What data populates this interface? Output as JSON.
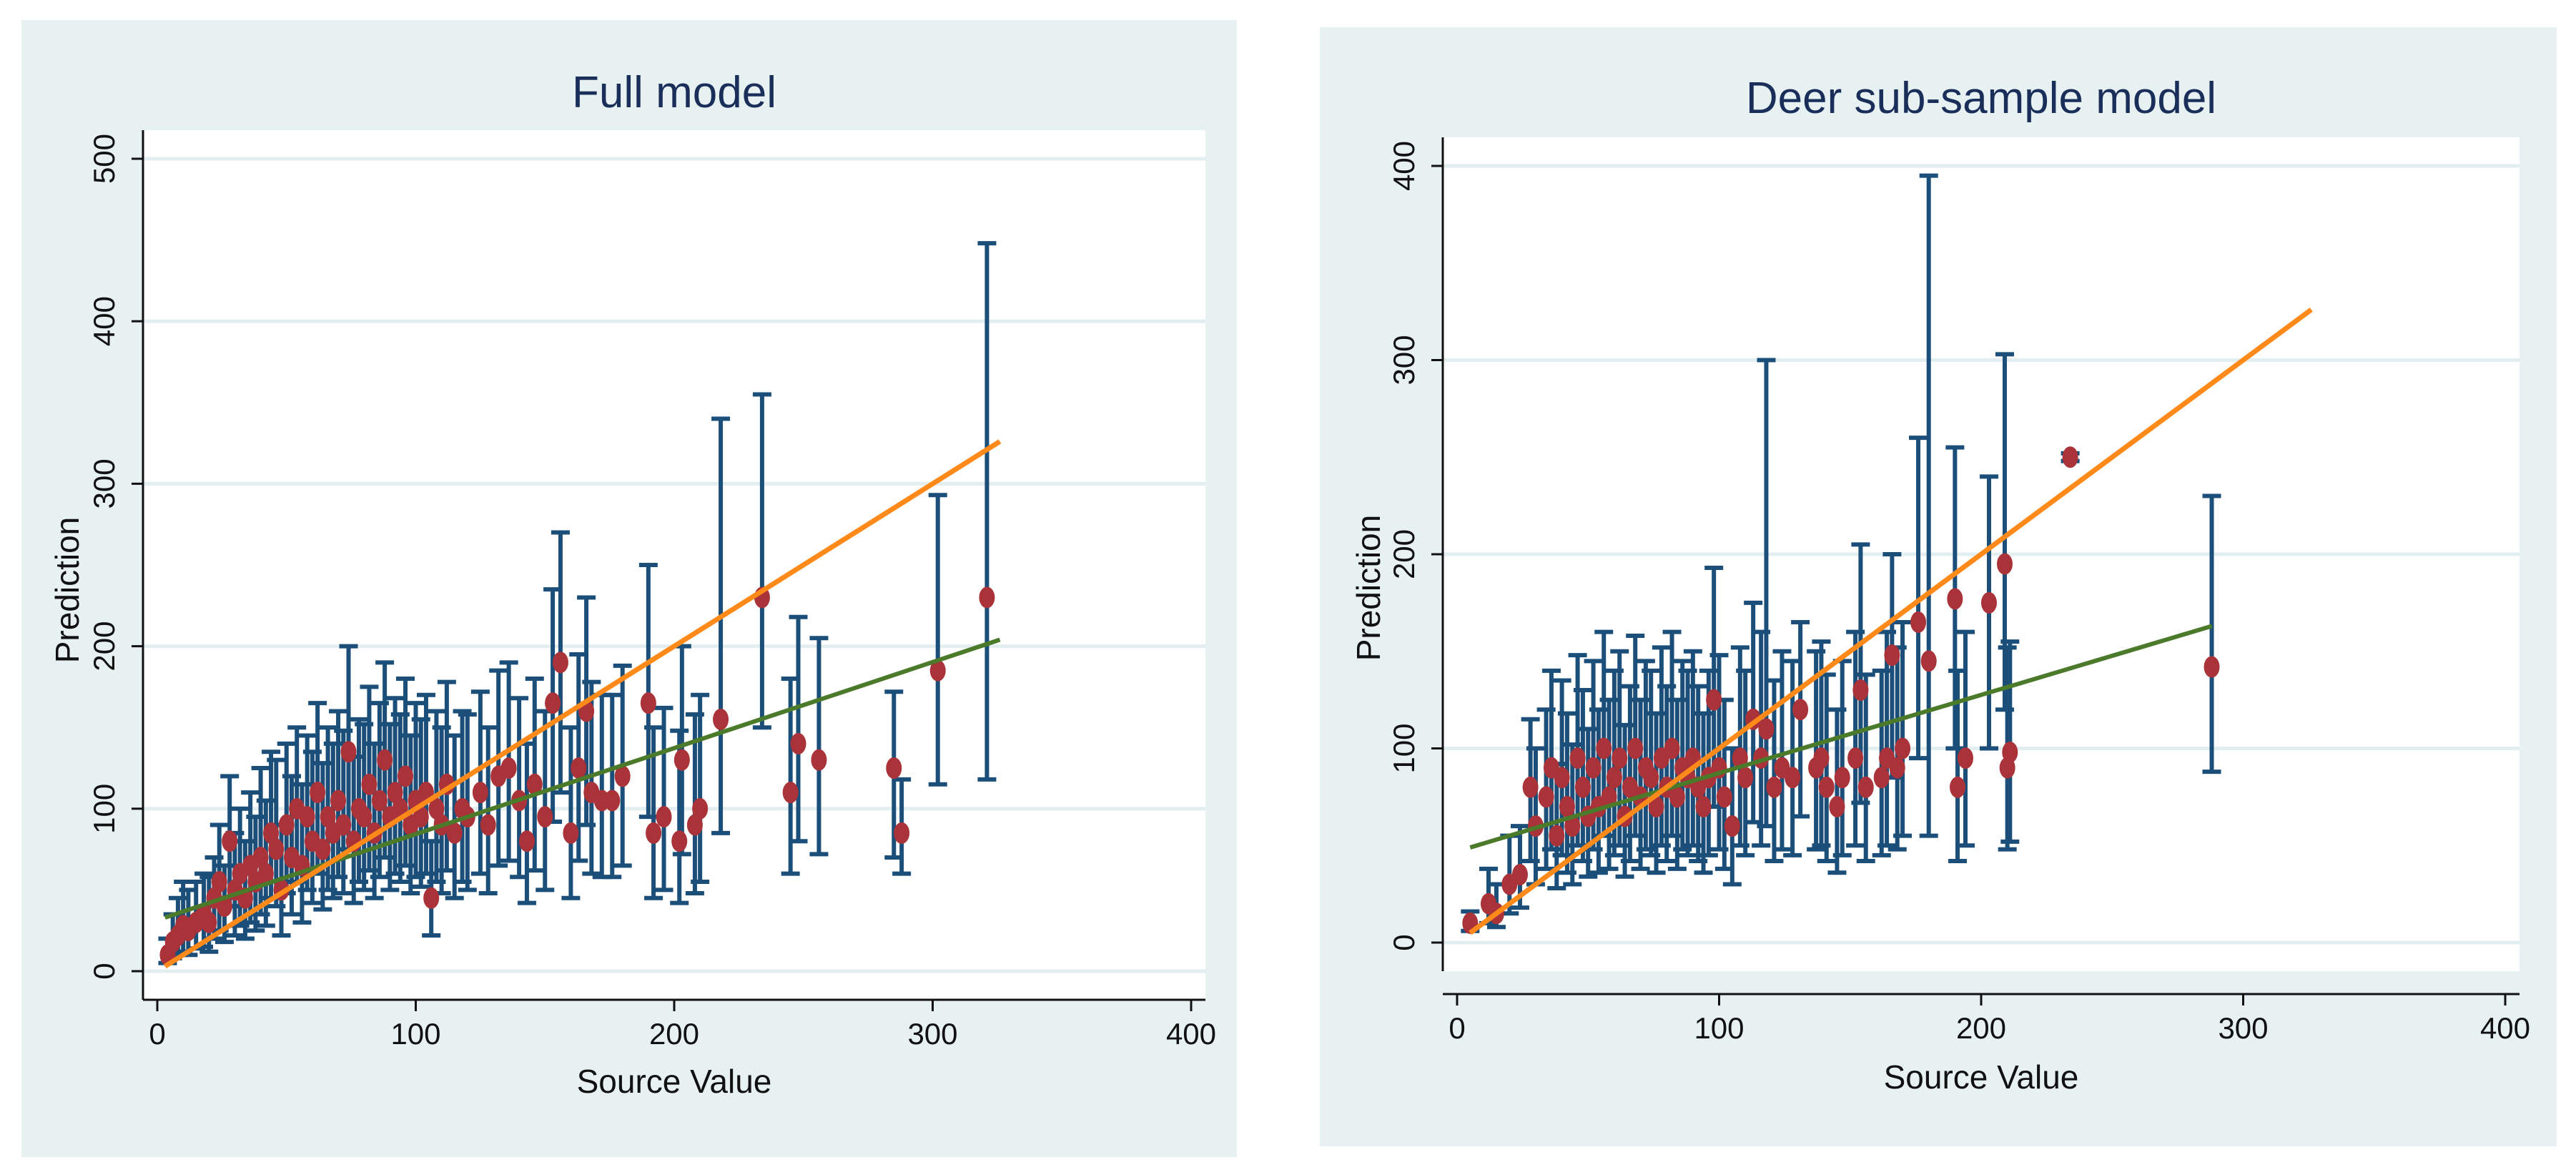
{
  "chart_data": [
    {
      "type": "scatter",
      "title": "Full model",
      "xlabel": "Source Value",
      "ylabel": "Prediction",
      "xlim": [
        0,
        400
      ],
      "ylim": [
        0,
        500
      ],
      "xticks": [
        0,
        100,
        200,
        300,
        400
      ],
      "yticks": [
        0,
        100,
        200,
        300,
        400,
        500
      ],
      "grid": true,
      "colors": {
        "points": "#a93339",
        "errorbars": "#1b4f7a",
        "fit": "#4a7a2a",
        "identity": "#ff8a1a",
        "background": "#e8f1f2"
      },
      "fit_line": {
        "x": [
          3,
          326
        ],
        "y": [
          33,
          204
        ]
      },
      "identity_line": {
        "x": [
          3,
          326
        ],
        "y": [
          3,
          326
        ]
      },
      "points": [
        {
          "x": 4,
          "y": 10,
          "lo": 5,
          "hi": 20
        },
        {
          "x": 6,
          "y": 18,
          "lo": 8,
          "hi": 35
        },
        {
          "x": 8,
          "y": 22,
          "lo": 10,
          "hi": 45
        },
        {
          "x": 10,
          "y": 28,
          "lo": 12,
          "hi": 55
        },
        {
          "x": 12,
          "y": 25,
          "lo": 10,
          "hi": 50
        },
        {
          "x": 15,
          "y": 30,
          "lo": 14,
          "hi": 55
        },
        {
          "x": 18,
          "y": 35,
          "lo": 15,
          "hi": 60
        },
        {
          "x": 20,
          "y": 30,
          "lo": 12,
          "hi": 58
        },
        {
          "x": 22,
          "y": 45,
          "lo": 20,
          "hi": 70
        },
        {
          "x": 24,
          "y": 55,
          "lo": 25,
          "hi": 90
        },
        {
          "x": 26,
          "y": 40,
          "lo": 18,
          "hi": 65
        },
        {
          "x": 28,
          "y": 80,
          "lo": 40,
          "hi": 120
        },
        {
          "x": 30,
          "y": 50,
          "lo": 22,
          "hi": 85
        },
        {
          "x": 32,
          "y": 60,
          "lo": 28,
          "hi": 100
        },
        {
          "x": 34,
          "y": 45,
          "lo": 20,
          "hi": 80
        },
        {
          "x": 36,
          "y": 65,
          "lo": 30,
          "hi": 110
        },
        {
          "x": 38,
          "y": 55,
          "lo": 25,
          "hi": 95
        },
        {
          "x": 40,
          "y": 70,
          "lo": 35,
          "hi": 125
        },
        {
          "x": 42,
          "y": 60,
          "lo": 28,
          "hi": 105
        },
        {
          "x": 44,
          "y": 85,
          "lo": 45,
          "hi": 135
        },
        {
          "x": 46,
          "y": 75,
          "lo": 40,
          "hi": 130
        },
        {
          "x": 48,
          "y": 50,
          "lo": 22,
          "hi": 90
        },
        {
          "x": 50,
          "y": 90,
          "lo": 48,
          "hi": 140
        },
        {
          "x": 52,
          "y": 70,
          "lo": 35,
          "hi": 120
        },
        {
          "x": 54,
          "y": 100,
          "lo": 55,
          "hi": 150
        },
        {
          "x": 56,
          "y": 65,
          "lo": 30,
          "hi": 115
        },
        {
          "x": 58,
          "y": 95,
          "lo": 50,
          "hi": 145
        },
        {
          "x": 60,
          "y": 80,
          "lo": 42,
          "hi": 135
        },
        {
          "x": 62,
          "y": 110,
          "lo": 60,
          "hi": 165
        },
        {
          "x": 64,
          "y": 75,
          "lo": 38,
          "hi": 128
        },
        {
          "x": 66,
          "y": 95,
          "lo": 50,
          "hi": 150
        },
        {
          "x": 68,
          "y": 85,
          "lo": 45,
          "hi": 140
        },
        {
          "x": 70,
          "y": 105,
          "lo": 58,
          "hi": 160
        },
        {
          "x": 72,
          "y": 90,
          "lo": 48,
          "hi": 148
        },
        {
          "x": 74,
          "y": 135,
          "lo": 75,
          "hi": 200
        },
        {
          "x": 76,
          "y": 80,
          "lo": 42,
          "hi": 132
        },
        {
          "x": 78,
          "y": 100,
          "lo": 55,
          "hi": 155
        },
        {
          "x": 80,
          "y": 95,
          "lo": 50,
          "hi": 152
        },
        {
          "x": 82,
          "y": 115,
          "lo": 62,
          "hi": 175
        },
        {
          "x": 84,
          "y": 85,
          "lo": 45,
          "hi": 140
        },
        {
          "x": 86,
          "y": 105,
          "lo": 58,
          "hi": 165
        },
        {
          "x": 88,
          "y": 130,
          "lo": 70,
          "hi": 190
        },
        {
          "x": 90,
          "y": 95,
          "lo": 50,
          "hi": 152
        },
        {
          "x": 92,
          "y": 110,
          "lo": 60,
          "hi": 168
        },
        {
          "x": 94,
          "y": 100,
          "lo": 55,
          "hi": 158
        },
        {
          "x": 96,
          "y": 120,
          "lo": 65,
          "hi": 180
        },
        {
          "x": 98,
          "y": 90,
          "lo": 48,
          "hi": 145
        },
        {
          "x": 100,
          "y": 105,
          "lo": 58,
          "hi": 165
        },
        {
          "x": 102,
          "y": 95,
          "lo": 52,
          "hi": 155
        },
        {
          "x": 104,
          "y": 110,
          "lo": 60,
          "hi": 170
        },
        {
          "x": 106,
          "y": 45,
          "lo": 22,
          "hi": 80
        },
        {
          "x": 108,
          "y": 100,
          "lo": 55,
          "hi": 160
        },
        {
          "x": 110,
          "y": 90,
          "lo": 48,
          "hi": 150
        },
        {
          "x": 112,
          "y": 115,
          "lo": 62,
          "hi": 178
        },
        {
          "x": 115,
          "y": 85,
          "lo": 45,
          "hi": 145
        },
        {
          "x": 118,
          "y": 100,
          "lo": 55,
          "hi": 160
        },
        {
          "x": 120,
          "y": 95,
          "lo": 50,
          "hi": 158
        },
        {
          "x": 125,
          "y": 110,
          "lo": 60,
          "hi": 172
        },
        {
          "x": 128,
          "y": 90,
          "lo": 48,
          "hi": 150
        },
        {
          "x": 132,
          "y": 120,
          "lo": 65,
          "hi": 185
        },
        {
          "x": 136,
          "y": 125,
          "lo": 68,
          "hi": 190
        },
        {
          "x": 140,
          "y": 105,
          "lo": 58,
          "hi": 168
        },
        {
          "x": 143,
          "y": 80,
          "lo": 42,
          "hi": 140
        },
        {
          "x": 146,
          "y": 115,
          "lo": 62,
          "hi": 180
        },
        {
          "x": 150,
          "y": 95,
          "lo": 50,
          "hi": 160
        },
        {
          "x": 153,
          "y": 165,
          "lo": 92,
          "hi": 235
        },
        {
          "x": 156,
          "y": 190,
          "lo": 110,
          "hi": 270
        },
        {
          "x": 160,
          "y": 85,
          "lo": 45,
          "hi": 150
        },
        {
          "x": 163,
          "y": 125,
          "lo": 68,
          "hi": 195
        },
        {
          "x": 166,
          "y": 160,
          "lo": 90,
          "hi": 230
        },
        {
          "x": 168,
          "y": 110,
          "lo": 60,
          "hi": 178
        },
        {
          "x": 172,
          "y": 105,
          "lo": 58,
          "hi": 170
        },
        {
          "x": 176,
          "y": 105,
          "lo": 58,
          "hi": 170
        },
        {
          "x": 180,
          "y": 120,
          "lo": 65,
          "hi": 188
        },
        {
          "x": 190,
          "y": 165,
          "lo": 95,
          "hi": 250
        },
        {
          "x": 192,
          "y": 85,
          "lo": 45,
          "hi": 150
        },
        {
          "x": 196,
          "y": 95,
          "lo": 50,
          "hi": 162
        },
        {
          "x": 202,
          "y": 80,
          "lo": 42,
          "hi": 148
        },
        {
          "x": 203,
          "y": 130,
          "lo": 72,
          "hi": 200
        },
        {
          "x": 208,
          "y": 90,
          "lo": 48,
          "hi": 158
        },
        {
          "x": 210,
          "y": 100,
          "lo": 55,
          "hi": 170
        },
        {
          "x": 218,
          "y": 155,
          "lo": 85,
          "hi": 340
        },
        {
          "x": 234,
          "y": 230,
          "lo": 150,
          "hi": 355
        },
        {
          "x": 245,
          "y": 110,
          "lo": 60,
          "hi": 180
        },
        {
          "x": 248,
          "y": 140,
          "lo": 80,
          "hi": 218
        },
        {
          "x": 256,
          "y": 130,
          "lo": 72,
          "hi": 205
        },
        {
          "x": 285,
          "y": 125,
          "lo": 70,
          "hi": 172
        },
        {
          "x": 288,
          "y": 85,
          "lo": 60,
          "hi": 118
        },
        {
          "x": 302,
          "y": 185,
          "lo": 115,
          "hi": 293
        },
        {
          "x": 321,
          "y": 230,
          "lo": 118,
          "hi": 448
        }
      ]
    },
    {
      "type": "scatter",
      "title": "Deer sub-sample model",
      "xlabel": "Source Value",
      "ylabel": "Prediction",
      "xlim": [
        0,
        400
      ],
      "ylim": [
        0,
        400
      ],
      "xticks": [
        0,
        100,
        200,
        300,
        400
      ],
      "yticks": [
        0,
        100,
        200,
        300,
        400
      ],
      "grid": true,
      "colors": {
        "points": "#a93339",
        "errorbars": "#1b4f7a",
        "fit": "#4a7a2a",
        "identity": "#ff8a1a",
        "background": "#e8f1f2"
      },
      "fit_line": {
        "x": [
          5,
          288
        ],
        "y": [
          49,
          163
        ]
      },
      "identity_line": {
        "x": [
          5,
          326
        ],
        "y": [
          5,
          326
        ]
      },
      "points": [
        {
          "x": 5,
          "y": 10,
          "lo": 6,
          "hi": 16
        },
        {
          "x": 12,
          "y": 20,
          "lo": 10,
          "hi": 38
        },
        {
          "x": 15,
          "y": 15,
          "lo": 8,
          "hi": 30
        },
        {
          "x": 20,
          "y": 30,
          "lo": 15,
          "hi": 55
        },
        {
          "x": 24,
          "y": 35,
          "lo": 18,
          "hi": 60
        },
        {
          "x": 28,
          "y": 80,
          "lo": 42,
          "hi": 115
        },
        {
          "x": 30,
          "y": 60,
          "lo": 30,
          "hi": 100
        },
        {
          "x": 34,
          "y": 75,
          "lo": 38,
          "hi": 120
        },
        {
          "x": 36,
          "y": 90,
          "lo": 48,
          "hi": 140
        },
        {
          "x": 38,
          "y": 55,
          "lo": 28,
          "hi": 92
        },
        {
          "x": 40,
          "y": 85,
          "lo": 45,
          "hi": 135
        },
        {
          "x": 42,
          "y": 70,
          "lo": 36,
          "hi": 118
        },
        {
          "x": 44,
          "y": 60,
          "lo": 30,
          "hi": 102
        },
        {
          "x": 46,
          "y": 95,
          "lo": 50,
          "hi": 148
        },
        {
          "x": 48,
          "y": 80,
          "lo": 42,
          "hi": 130
        },
        {
          "x": 50,
          "y": 65,
          "lo": 34,
          "hi": 110
        },
        {
          "x": 52,
          "y": 90,
          "lo": 48,
          "hi": 145
        },
        {
          "x": 54,
          "y": 70,
          "lo": 36,
          "hi": 120
        },
        {
          "x": 56,
          "y": 100,
          "lo": 55,
          "hi": 160
        },
        {
          "x": 58,
          "y": 75,
          "lo": 38,
          "hi": 125
        },
        {
          "x": 60,
          "y": 85,
          "lo": 45,
          "hi": 140
        },
        {
          "x": 62,
          "y": 95,
          "lo": 50,
          "hi": 150
        },
        {
          "x": 64,
          "y": 65,
          "lo": 34,
          "hi": 112
        },
        {
          "x": 66,
          "y": 80,
          "lo": 42,
          "hi": 132
        },
        {
          "x": 68,
          "y": 100,
          "lo": 55,
          "hi": 158
        },
        {
          "x": 70,
          "y": 75,
          "lo": 38,
          "hi": 125
        },
        {
          "x": 72,
          "y": 90,
          "lo": 48,
          "hi": 145
        },
        {
          "x": 74,
          "y": 85,
          "lo": 45,
          "hi": 140
        },
        {
          "x": 76,
          "y": 70,
          "lo": 36,
          "hi": 118
        },
        {
          "x": 78,
          "y": 95,
          "lo": 50,
          "hi": 152
        },
        {
          "x": 80,
          "y": 80,
          "lo": 42,
          "hi": 132
        },
        {
          "x": 82,
          "y": 100,
          "lo": 55,
          "hi": 160
        },
        {
          "x": 84,
          "y": 75,
          "lo": 38,
          "hi": 125
        },
        {
          "x": 86,
          "y": 90,
          "lo": 48,
          "hi": 145
        },
        {
          "x": 88,
          "y": 85,
          "lo": 45,
          "hi": 140
        },
        {
          "x": 90,
          "y": 95,
          "lo": 50,
          "hi": 150
        },
        {
          "x": 92,
          "y": 80,
          "lo": 42,
          "hi": 132
        },
        {
          "x": 94,
          "y": 70,
          "lo": 36,
          "hi": 118
        },
        {
          "x": 96,
          "y": 85,
          "lo": 45,
          "hi": 140
        },
        {
          "x": 98,
          "y": 125,
          "lo": 70,
          "hi": 193
        },
        {
          "x": 100,
          "y": 90,
          "lo": 48,
          "hi": 148
        },
        {
          "x": 102,
          "y": 75,
          "lo": 38,
          "hi": 125
        },
        {
          "x": 105,
          "y": 60,
          "lo": 30,
          "hi": 100
        },
        {
          "x": 108,
          "y": 95,
          "lo": 50,
          "hi": 152
        },
        {
          "x": 110,
          "y": 85,
          "lo": 45,
          "hi": 140
        },
        {
          "x": 113,
          "y": 115,
          "lo": 62,
          "hi": 175
        },
        {
          "x": 116,
          "y": 95,
          "lo": 50,
          "hi": 160
        },
        {
          "x": 118,
          "y": 110,
          "lo": 60,
          "hi": 300
        },
        {
          "x": 121,
          "y": 80,
          "lo": 42,
          "hi": 135
        },
        {
          "x": 124,
          "y": 90,
          "lo": 48,
          "hi": 150
        },
        {
          "x": 128,
          "y": 85,
          "lo": 45,
          "hi": 145
        },
        {
          "x": 131,
          "y": 120,
          "lo": 65,
          "hi": 165
        },
        {
          "x": 137,
          "y": 90,
          "lo": 48,
          "hi": 150
        },
        {
          "x": 139,
          "y": 95,
          "lo": 50,
          "hi": 155
        },
        {
          "x": 141,
          "y": 80,
          "lo": 42,
          "hi": 138
        },
        {
          "x": 145,
          "y": 70,
          "lo": 36,
          "hi": 120
        },
        {
          "x": 147,
          "y": 85,
          "lo": 45,
          "hi": 145
        },
        {
          "x": 152,
          "y": 95,
          "lo": 50,
          "hi": 160
        },
        {
          "x": 154,
          "y": 130,
          "lo": 72,
          "hi": 205
        },
        {
          "x": 156,
          "y": 80,
          "lo": 42,
          "hi": 138
        },
        {
          "x": 162,
          "y": 85,
          "lo": 45,
          "hi": 140
        },
        {
          "x": 164,
          "y": 95,
          "lo": 50,
          "hi": 160
        },
        {
          "x": 166,
          "y": 148,
          "lo": 85,
          "hi": 200
        },
        {
          "x": 168,
          "y": 90,
          "lo": 48,
          "hi": 152
        },
        {
          "x": 170,
          "y": 100,
          "lo": 55,
          "hi": 165
        },
        {
          "x": 176,
          "y": 165,
          "lo": 95,
          "hi": 260
        },
        {
          "x": 180,
          "y": 145,
          "lo": 55,
          "hi": 395
        },
        {
          "x": 190,
          "y": 177,
          "lo": 100,
          "hi": 255
        },
        {
          "x": 191,
          "y": 80,
          "lo": 42,
          "hi": 140
        },
        {
          "x": 194,
          "y": 95,
          "lo": 50,
          "hi": 160
        },
        {
          "x": 203,
          "y": 175,
          "lo": 100,
          "hi": 240
        },
        {
          "x": 209,
          "y": 195,
          "lo": 120,
          "hi": 303
        },
        {
          "x": 210,
          "y": 90,
          "lo": 48,
          "hi": 152
        },
        {
          "x": 211,
          "y": 98,
          "lo": 52,
          "hi": 155
        },
        {
          "x": 234,
          "y": 250,
          "lo": 248,
          "hi": 252
        },
        {
          "x": 288,
          "y": 142,
          "lo": 88,
          "hi": 230
        }
      ]
    }
  ]
}
